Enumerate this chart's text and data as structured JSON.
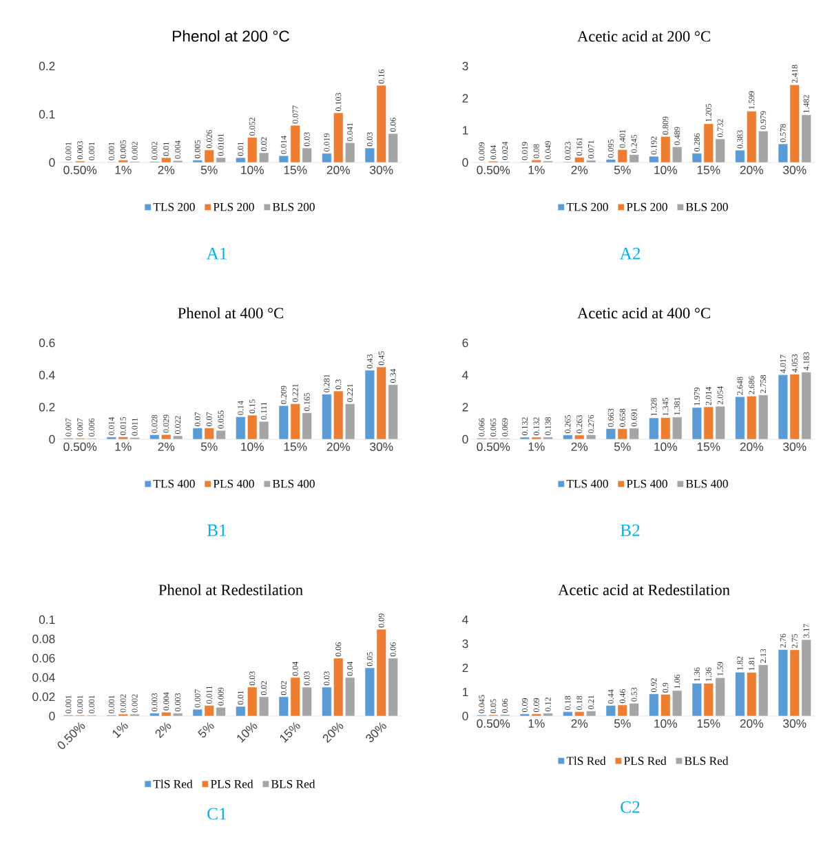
{
  "chart_data": [
    {
      "type": "bar",
      "title": "Phenol at 200 °C",
      "categories": [
        "0.50%",
        "1%",
        "2%",
        "5%",
        "10%",
        "15%",
        "20%",
        "30%"
      ],
      "ylim": [
        0,
        0.2
      ],
      "yticks": [
        0,
        0.1,
        0.2
      ],
      "grid": false,
      "legend": "bottom",
      "data_labels": true,
      "annotations": [
        "A1"
      ],
      "series": [
        {
          "name": "TLS 200",
          "color": "#5b9bd5",
          "values": [
            0.001,
            0.001,
            0.002,
            0.005,
            0.01,
            0.014,
            0.019,
            0.03
          ]
        },
        {
          "name": "PLS 200",
          "color": "#ed7d31",
          "values": [
            0.003,
            0.005,
            0.01,
            0.026,
            0.052,
            0.077,
            0.103,
            0.16
          ]
        },
        {
          "name": "BLS 200",
          "color": "#a5a5a5",
          "values": [
            0.001,
            0.002,
            0.004,
            0.0101,
            0.02,
            0.03,
            0.041,
            0.06
          ]
        }
      ]
    },
    {
      "type": "bar",
      "title": "Acetic acid at 200 °C",
      "categories": [
        "0.50%",
        "1%",
        "2%",
        "5%",
        "10%",
        "15%",
        "20%",
        "30%"
      ],
      "ylim": [
        0,
        3
      ],
      "yticks": [
        0,
        1,
        2,
        3
      ],
      "grid": false,
      "legend": "bottom",
      "data_labels": true,
      "annotations": [
        "A2"
      ],
      "series": [
        {
          "name": "TLS 200",
          "color": "#5b9bd5",
          "values": [
            0.009,
            0.019,
            0.023,
            0.095,
            0.192,
            0.286,
            0.383,
            0.578
          ]
        },
        {
          "name": "PLS 200",
          "color": "#ed7d31",
          "values": [
            0.04,
            0.08,
            0.161,
            0.401,
            0.809,
            1.205,
            1.599,
            2.418
          ]
        },
        {
          "name": "BLS 200",
          "color": "#a5a5a5",
          "values": [
            0.024,
            0.049,
            0.071,
            0.245,
            0.489,
            0.732,
            0.979,
            1.482
          ]
        }
      ]
    },
    {
      "type": "bar",
      "title": "Phenol at 400 °C",
      "categories": [
        "0.50%",
        "1%",
        "2%",
        "5%",
        "10%",
        "15%",
        "20%",
        "30%"
      ],
      "ylim": [
        0,
        0.6
      ],
      "yticks": [
        0,
        0.2,
        0.4,
        0.6
      ],
      "grid": false,
      "legend": "bottom",
      "data_labels": true,
      "annotations": [
        "B1"
      ],
      "series": [
        {
          "name": "TLS 400",
          "color": "#5b9bd5",
          "values": [
            0.007,
            0.014,
            0.028,
            0.07,
            0.14,
            0.209,
            0.281,
            0.43
          ]
        },
        {
          "name": "PLS 400",
          "color": "#ed7d31",
          "values": [
            0.007,
            0.015,
            0.029,
            0.07,
            0.15,
            0.221,
            0.3,
            0.45
          ]
        },
        {
          "name": "BLS 400",
          "color": "#a5a5a5",
          "values": [
            0.006,
            0.011,
            0.022,
            0.055,
            0.111,
            0.165,
            0.221,
            0.34
          ]
        }
      ]
    },
    {
      "type": "bar",
      "title": "Acetic acid at 400 °C",
      "categories": [
        "0.50%",
        "1%",
        "2%",
        "5%",
        "10%",
        "15%",
        "20%",
        "30%"
      ],
      "ylim": [
        0,
        6
      ],
      "yticks": [
        0,
        2,
        4,
        6
      ],
      "grid": false,
      "legend": "bottom",
      "data_labels": true,
      "annotations": [
        "B2"
      ],
      "series": [
        {
          "name": "TLS 400",
          "color": "#5b9bd5",
          "values": [
            0.066,
            0.132,
            0.265,
            0.663,
            1.328,
            1.979,
            2.648,
            4.017
          ]
        },
        {
          "name": "PLS 400",
          "color": "#ed7d31",
          "values": [
            0.065,
            0.132,
            0.263,
            0.658,
            1.345,
            2.014,
            2.686,
            4.053
          ]
        },
        {
          "name": "BLS 400",
          "color": "#a5a5a5",
          "values": [
            0.069,
            0.138,
            0.276,
            0.691,
            1.381,
            2.054,
            2.758,
            4.183
          ]
        }
      ]
    },
    {
      "type": "bar",
      "title": "Phenol at Redestilation",
      "categories": [
        "0.50%",
        "1%",
        "2%",
        "5%",
        "10%",
        "15%",
        "20%",
        "30%"
      ],
      "ylim": [
        0,
        0.1
      ],
      "yticks": [
        0,
        0.02,
        0.04,
        0.06,
        0.08,
        0.1
      ],
      "grid": false,
      "legend": "bottom",
      "data_labels": true,
      "annotations": [
        "C1"
      ],
      "series": [
        {
          "name": "TlS Red",
          "color": "#5b9bd5",
          "values": [
            0.001,
            0.001,
            0.003,
            0.007,
            0.01,
            0.02,
            0.03,
            0.05
          ]
        },
        {
          "name": "PLS Red",
          "color": "#ed7d31",
          "values": [
            0.001,
            0.002,
            0.004,
            0.011,
            0.03,
            0.04,
            0.06,
            0.09
          ]
        },
        {
          "name": "BLS Red",
          "color": "#a5a5a5",
          "values": [
            0.001,
            0.002,
            0.003,
            0.009,
            0.02,
            0.03,
            0.04,
            0.06
          ]
        }
      ]
    },
    {
      "type": "bar",
      "title": "Acetic acid at Redestilation",
      "categories": [
        "0.50%",
        "1%",
        "2%",
        "5%",
        "10%",
        "15%",
        "20%",
        "30%"
      ],
      "ylim": [
        0,
        4
      ],
      "yticks": [
        0,
        1,
        2,
        3,
        4
      ],
      "grid": false,
      "legend": "bottom",
      "data_labels": true,
      "annotations": [
        "C2"
      ],
      "series": [
        {
          "name": "TlS Red",
          "color": "#5b9bd5",
          "values": [
            0.045,
            0.09,
            0.18,
            0.44,
            0.92,
            1.36,
            1.82,
            2.76
          ]
        },
        {
          "name": "PLS Red",
          "color": "#ed7d31",
          "values": [
            0.05,
            0.09,
            0.18,
            0.46,
            0.9,
            1.36,
            1.81,
            2.75
          ]
        },
        {
          "name": "BLS Red",
          "color": "#a5a5a5",
          "values": [
            0.06,
            0.12,
            0.21,
            0.53,
            1.06,
            1.59,
            2.13,
            3.17
          ]
        }
      ]
    }
  ]
}
